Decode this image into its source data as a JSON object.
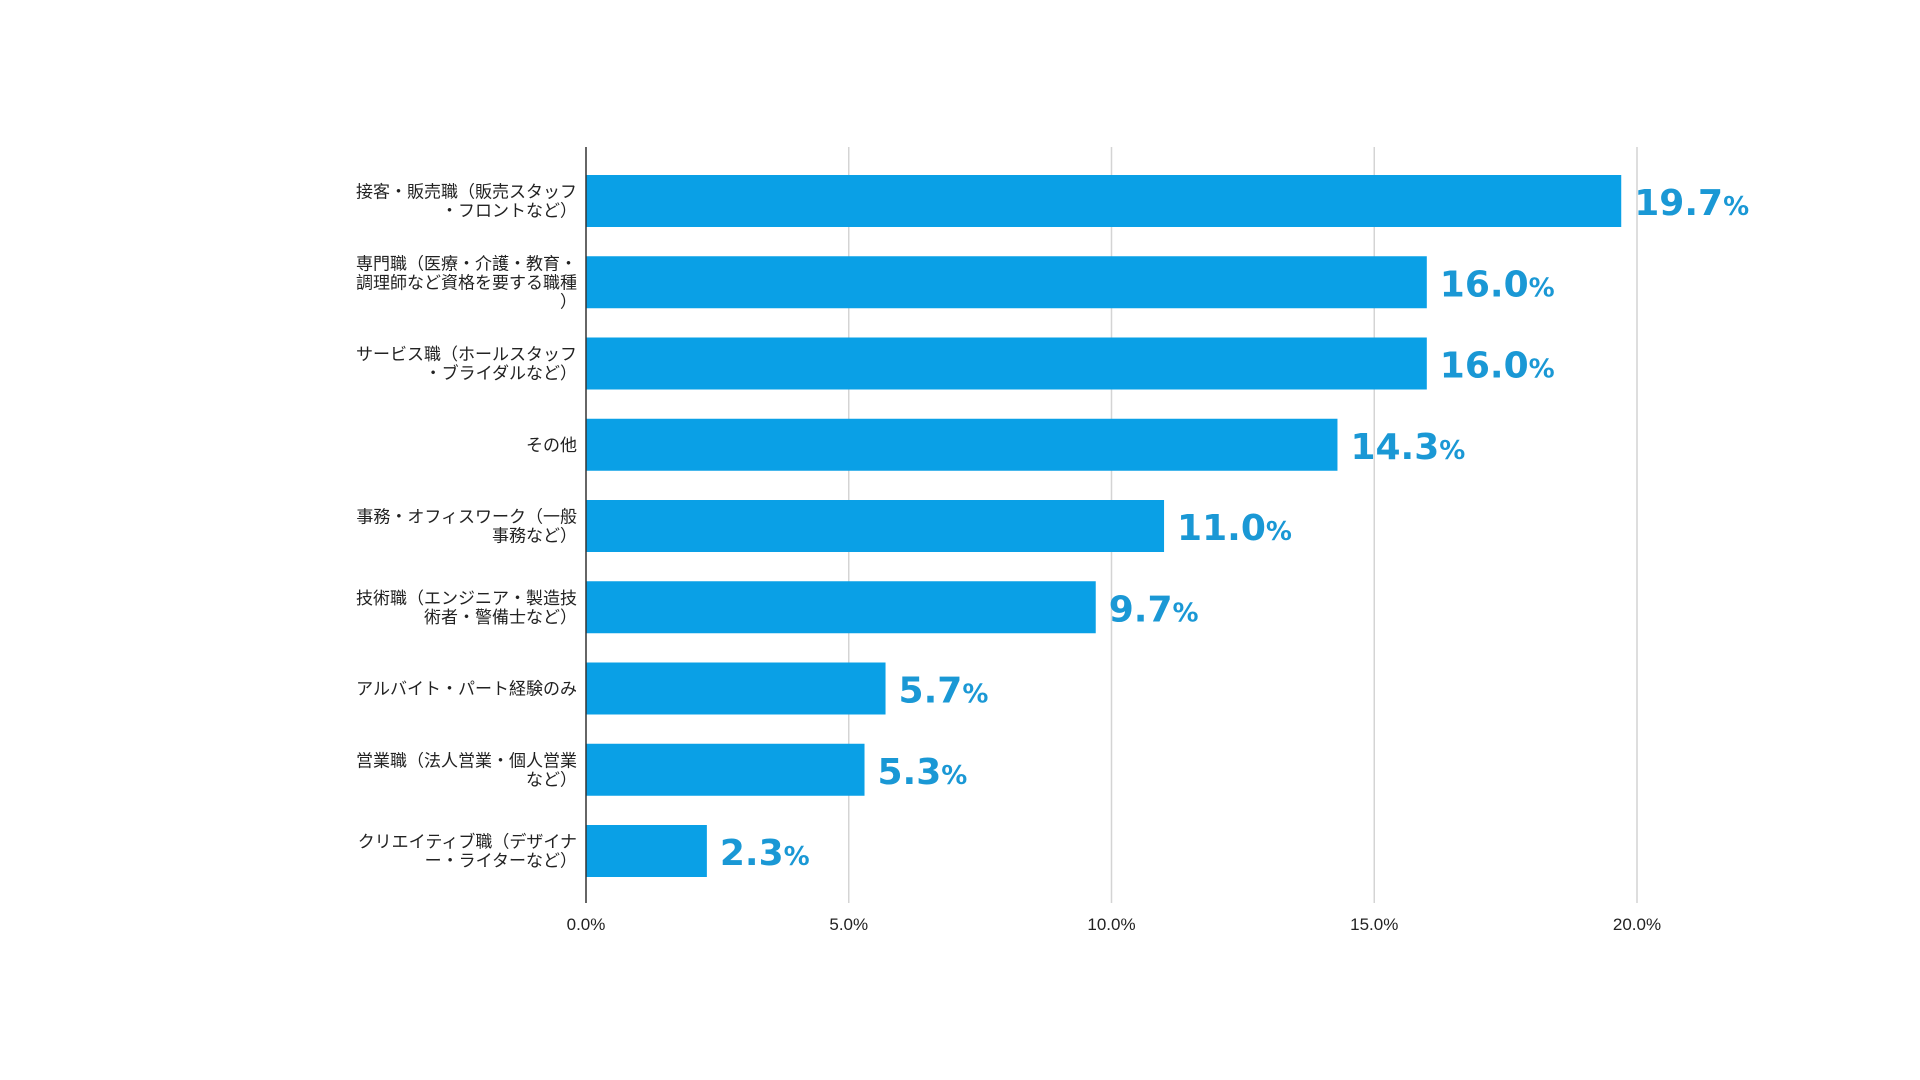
{
  "chart_data": {
    "type": "bar",
    "orientation": "horizontal",
    "categories": [
      [
        "接客・販売職（販売スタッフ",
        "・フロントなど）"
      ],
      [
        "専門職（医療・介護・教育・",
        "調理師など資格を要する職種",
        "）"
      ],
      [
        "サービス職（ホールスタッフ",
        "・ブライダルなど）"
      ],
      [
        "その他"
      ],
      [
        "事務・オフィスワーク（一般",
        "事務など）"
      ],
      [
        "技術職（エンジニア・製造技",
        "術者・警備士など）"
      ],
      [
        "アルバイト・パート経験のみ"
      ],
      [
        "営業職（法人営業・個人営業",
        "など）"
      ],
      [
        "クリエイティブ職（デザイナ",
        "ー・ライターなど）"
      ]
    ],
    "values": [
      19.7,
      16.0,
      16.0,
      14.3,
      11.0,
      9.7,
      5.7,
      5.3,
      2.3
    ],
    "value_labels": [
      "19.7",
      "16.0",
      "16.0",
      "14.3",
      "11.0",
      "9.7",
      "5.7",
      "5.3",
      "2.3"
    ],
    "value_unit": "%",
    "xlim": [
      0,
      20
    ],
    "xticks": [
      "0.0%",
      "5.0%",
      "10.0%",
      "15.0%",
      "20.0%"
    ],
    "title": "",
    "xlabel": "",
    "ylabel": "",
    "grid": "vertical",
    "legend": "none",
    "colors": {
      "bar": "#0aa0e6",
      "value_label": "#1a98d5",
      "grid": "#d4d4d4",
      "axis": "#333333"
    }
  }
}
